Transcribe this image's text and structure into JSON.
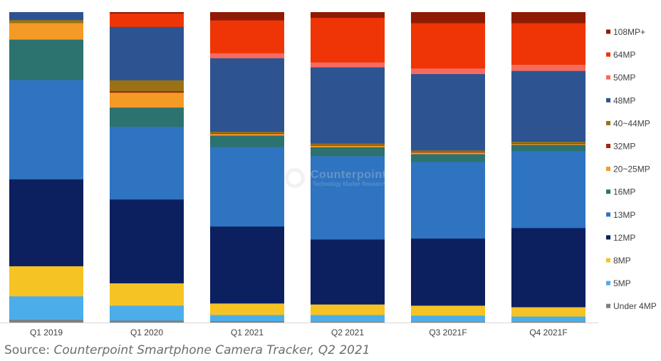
{
  "chart_data": {
    "type": "bar",
    "stacked": true,
    "normalized_percent": true,
    "categories": [
      "Q1 2019",
      "Q1 2020",
      "Q1 2021",
      "Q2 2021",
      "Q3 2021F",
      "Q4 2021F"
    ],
    "series": [
      {
        "name": "Under 4MP",
        "color": "#7f7f7f",
        "values": [
          1,
          0.7,
          0.5,
          0.3,
          0.3,
          0.3
        ]
      },
      {
        "name": "5MP",
        "color": "#4baeea",
        "values": [
          7.5,
          4.8,
          2,
          2.2,
          2,
          1.7
        ]
      },
      {
        "name": "8MP",
        "color": "#f6c325",
        "values": [
          9.7,
          7.2,
          3.7,
          3.4,
          3.2,
          3
        ]
      },
      {
        "name": "12MP",
        "color": "#0c2060",
        "values": [
          28,
          27,
          24.8,
          21,
          21.6,
          25.5
        ]
      },
      {
        "name": "13MP",
        "color": "#2f74c1",
        "values": [
          32,
          23.4,
          25.6,
          26.9,
          24.7,
          24.8
        ]
      },
      {
        "name": "16MP",
        "color": "#2c726f",
        "values": [
          13,
          6.2,
          3.7,
          2.9,
          2.5,
          2
        ]
      },
      {
        "name": "20~25MP",
        "color": "#f49a27",
        "values": [
          5.3,
          4.8,
          0.5,
          0.5,
          0.5,
          0.3
        ]
      },
      {
        "name": "32MP",
        "color": "#9f2a0d",
        "values": [
          0,
          0.5,
          0.2,
          0.2,
          0.2,
          0.2
        ]
      },
      {
        "name": "40~44MP",
        "color": "#997215",
        "values": [
          1,
          3.5,
          0.5,
          0.5,
          0.5,
          0.5
        ]
      },
      {
        "name": "48MP",
        "color": "#2d5391",
        "values": [
          2.5,
          17.2,
          23.7,
          24.6,
          24.6,
          22.8
        ]
      },
      {
        "name": "50MP",
        "color": "#f56b5f",
        "values": [
          0,
          0,
          1.6,
          1.6,
          1.8,
          2
        ]
      },
      {
        "name": "64MP",
        "color": "#ef3505",
        "values": [
          0,
          4.3,
          10.6,
          14.4,
          14.6,
          13.4
        ]
      },
      {
        "name": "108MP+",
        "color": "#8e1b03",
        "values": [
          0,
          0.4,
          2.6,
          1.8,
          3.5,
          3.5
        ]
      }
    ],
    "ylim": [
      0,
      100
    ],
    "grid": false,
    "legend_position": "right",
    "title": "",
    "xlabel": "",
    "ylabel": ""
  },
  "watermark": {
    "brand": "Counterpoint",
    "sub": "Technology Market Research"
  },
  "source": {
    "prefix": "Source: ",
    "text": "Counterpoint Smartphone Camera Tracker, Q2 2021"
  }
}
